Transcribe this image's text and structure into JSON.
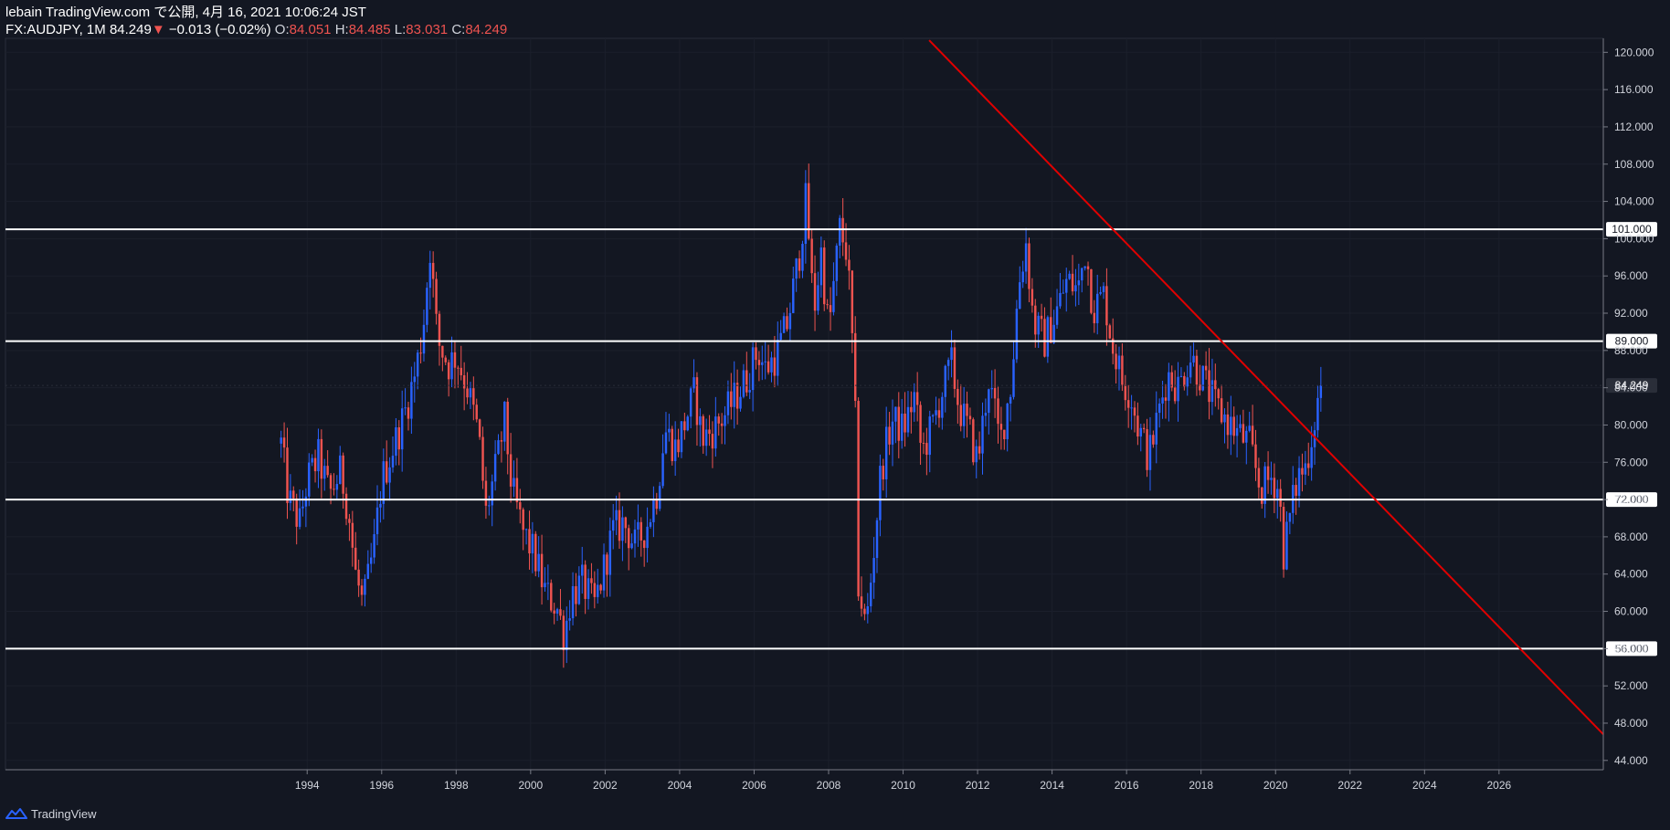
{
  "header": {
    "line1": "lebain TradingView.com で公開, 4月 16, 2021 10:06:24 JST",
    "symbol": "FX:AUDJPY, 1M",
    "last": "84.249",
    "change_arrow": "▼",
    "change": "−0.013 (−0.02%)",
    "o_label": "O:",
    "o_value": "84.051",
    "h_label": "H:",
    "h_value": "84.485",
    "l_label": "L:",
    "l_value": "83.031",
    "c_label": "C:",
    "c_value": "84.249"
  },
  "footer": {
    "brand": "TradingView"
  },
  "colors": {
    "background": "#131722",
    "up": "#2962ff",
    "down": "#ef5350",
    "trendline": "#e00000",
    "levels": "#ffffff",
    "text": "#d1d4dc"
  },
  "chart_data": {
    "type": "candlestick",
    "symbol": "AUDJPY",
    "interval": "1M",
    "x_range": [
      1985.9,
      2028.8
    ],
    "y_range": [
      43.0,
      121.5
    ],
    "x_ticks": [
      "1994",
      "1996",
      "1998",
      "2000",
      "2002",
      "2004",
      "2006",
      "2008",
      "2010",
      "2012",
      "2014",
      "2016",
      "2018",
      "2020",
      "2022",
      "2024",
      "2026"
    ],
    "y_ticks": [
      "44.000",
      "48.000",
      "52.000",
      "56.000",
      "60.000",
      "64.000",
      "68.000",
      "72.000",
      "76.000",
      "80.000",
      "84.000",
      "88.000",
      "92.000",
      "96.000",
      "100.000",
      "104.000",
      "108.000",
      "112.000",
      "116.000",
      "120.000"
    ],
    "horizontal_levels": [
      "101.000",
      "89.000",
      "72.000",
      "56.000"
    ],
    "last_price_label": "84.249",
    "trendline": {
      "from": [
        2010.7,
        121.3
      ],
      "to": [
        2028.8,
        46.8
      ]
    },
    "price_path": [
      [
        1993.3,
        78.0
      ],
      [
        1993.5,
        72.0
      ],
      [
        1993.8,
        69.5
      ],
      [
        1994.0,
        74.0
      ],
      [
        1994.3,
        76.5
      ],
      [
        1994.6,
        72.5
      ],
      [
        1994.9,
        75.0
      ],
      [
        1995.1,
        71.0
      ],
      [
        1995.3,
        64.0
      ],
      [
        1995.5,
        60.5
      ],
      [
        1995.8,
        67.0
      ],
      [
        1996.0,
        74.0
      ],
      [
        1996.3,
        77.5
      ],
      [
        1996.6,
        81.0
      ],
      [
        1996.9,
        85.5
      ],
      [
        1997.1,
        90.0
      ],
      [
        1997.3,
        99.0
      ],
      [
        1997.5,
        89.0
      ],
      [
        1997.8,
        86.5
      ],
      [
        1998.0,
        87.5
      ],
      [
        1998.3,
        84.0
      ],
      [
        1998.6,
        79.0
      ],
      [
        1998.8,
        70.5
      ],
      [
        1999.1,
        76.0
      ],
      [
        1999.3,
        80.5
      ],
      [
        1999.5,
        73.0
      ],
      [
        1999.8,
        68.5
      ],
      [
        2000.1,
        66.0
      ],
      [
        2000.4,
        62.0
      ],
      [
        2000.7,
        60.5
      ],
      [
        2000.9,
        57.5
      ],
      [
        2001.1,
        62.0
      ],
      [
        2001.4,
        63.0
      ],
      [
        2001.7,
        60.5
      ],
      [
        2001.9,
        63.5
      ],
      [
        2002.2,
        68.5
      ],
      [
        2002.5,
        69.5
      ],
      [
        2002.8,
        67.0
      ],
      [
        2003.1,
        69.0
      ],
      [
        2003.4,
        73.0
      ],
      [
        2003.6,
        79.5
      ],
      [
        2003.9,
        77.5
      ],
      [
        2004.2,
        81.0
      ],
      [
        2004.4,
        83.5
      ],
      [
        2004.6,
        78.5
      ],
      [
        2004.9,
        79.5
      ],
      [
        2005.2,
        81.0
      ],
      [
        2005.5,
        83.0
      ],
      [
        2005.8,
        85.0
      ],
      [
        2006.1,
        88.0
      ],
      [
        2006.3,
        86.0
      ],
      [
        2006.6,
        87.5
      ],
      [
        2006.9,
        91.0
      ],
      [
        2007.2,
        98.0
      ],
      [
        2007.4,
        104.5
      ],
      [
        2007.6,
        92.0
      ],
      [
        2007.8,
        98.5
      ],
      [
        2008.0,
        90.0
      ],
      [
        2008.3,
        101.0
      ],
      [
        2008.5,
        98.5
      ],
      [
        2008.7,
        84.0
      ],
      [
        2008.8,
        63.0
      ],
      [
        2009.0,
        58.0
      ],
      [
        2009.2,
        66.0
      ],
      [
        2009.4,
        75.0
      ],
      [
        2009.7,
        80.5
      ],
      [
        2010.0,
        79.5
      ],
      [
        2010.3,
        83.0
      ],
      [
        2010.5,
        77.0
      ],
      [
        2010.8,
        80.0
      ],
      [
        2011.0,
        83.0
      ],
      [
        2011.3,
        86.5
      ],
      [
        2011.5,
        82.0
      ],
      [
        2011.8,
        79.0
      ],
      [
        2012.0,
        76.0
      ],
      [
        2012.3,
        85.0
      ],
      [
        2012.6,
        78.0
      ],
      [
        2012.9,
        84.5
      ],
      [
        2013.1,
        95.0
      ],
      [
        2013.3,
        99.5
      ],
      [
        2013.5,
        91.0
      ],
      [
        2013.8,
        89.0
      ],
      [
        2014.1,
        92.0
      ],
      [
        2014.4,
        95.5
      ],
      [
        2014.7,
        94.5
      ],
      [
        2014.9,
        99.0
      ],
      [
        2015.1,
        92.5
      ],
      [
        2015.4,
        94.0
      ],
      [
        2015.6,
        89.0
      ],
      [
        2015.9,
        84.5
      ],
      [
        2016.1,
        83.5
      ],
      [
        2016.3,
        80.0
      ],
      [
        2016.6,
        76.5
      ],
      [
        2016.9,
        82.0
      ],
      [
        2017.1,
        85.5
      ],
      [
        2017.4,
        84.0
      ],
      [
        2017.7,
        87.5
      ],
      [
        2017.9,
        86.0
      ],
      [
        2018.1,
        84.5
      ],
      [
        2018.4,
        82.0
      ],
      [
        2018.7,
        80.5
      ],
      [
        2019.0,
        79.0
      ],
      [
        2019.3,
        78.0
      ],
      [
        2019.6,
        73.0
      ],
      [
        2019.9,
        74.5
      ],
      [
        2020.1,
        73.0
      ],
      [
        2020.2,
        66.0
      ],
      [
        2020.4,
        70.5
      ],
      [
        2020.6,
        74.5
      ],
      [
        2020.8,
        75.5
      ],
      [
        2021.0,
        79.5
      ],
      [
        2021.2,
        84.249
      ]
    ]
  }
}
